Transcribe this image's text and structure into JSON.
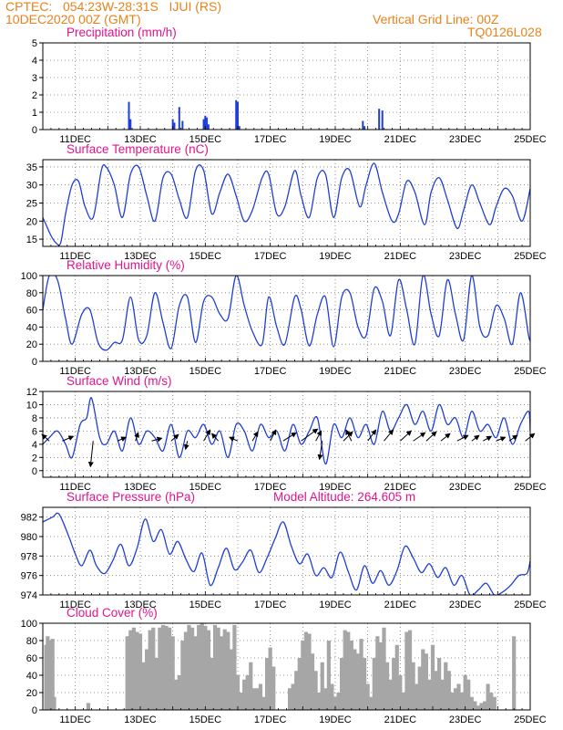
{
  "header": {
    "line1": "CPTEC:   054:23W-28:31S   IJUI (RS)",
    "line2": "10DEC2020 00Z (GMT)",
    "grid_note": "Vertical Grid Line: 00Z",
    "code": "TQ0126L028"
  },
  "colors": {
    "header": "#e8821a",
    "title": "#e0148c",
    "series": "#1f3fd6",
    "cloud": "#a6a6a6",
    "arrow": "#000000"
  },
  "chart_data": [
    {
      "type": "bar",
      "title": "Precipitation (mm/h)",
      "ylim": [
        0,
        5
      ],
      "yticks": [
        0,
        1,
        2,
        3,
        4,
        5
      ],
      "xlim_days": [
        10,
        25
      ],
      "xticks": [
        "11DEC",
        "13DEC",
        "15DEC",
        "17DEC",
        "19DEC",
        "21DEC",
        "23DEC",
        "25DEC"
      ],
      "x": [
        12.65,
        12.7,
        14.0,
        14.05,
        14.2,
        14.3,
        14.95,
        15.0,
        15.05,
        15.1,
        15.95,
        16.0,
        16.05,
        19.85,
        19.9,
        20.35,
        20.45
      ],
      "values": [
        1.6,
        0.6,
        0.6,
        0.4,
        1.3,
        0.5,
        0.6,
        0.8,
        0.7,
        0.3,
        1.7,
        1.6,
        0.2,
        0.5,
        0.2,
        1.2,
        1.1
      ]
    },
    {
      "type": "line",
      "title": "Surface Temperature (nC)",
      "ylim": [
        13,
        37
      ],
      "yticks": [
        15,
        20,
        25,
        30,
        35
      ],
      "xlim_days": [
        10,
        25
      ],
      "xticks": [
        "11DEC",
        "13DEC",
        "15DEC",
        "17DEC",
        "19DEC",
        "21DEC",
        "23DEC",
        "25DEC"
      ],
      "x": [
        10.0,
        10.1,
        10.25,
        10.4,
        10.55,
        10.7,
        10.9,
        11.1,
        11.3,
        11.55,
        11.8,
        11.95,
        12.2,
        12.45,
        12.7,
        12.95,
        13.2,
        13.45,
        13.7,
        13.95,
        14.2,
        14.45,
        14.7,
        14.95,
        15.2,
        15.45,
        15.7,
        15.95,
        16.2,
        16.45,
        16.75,
        16.95,
        17.2,
        17.45,
        17.75,
        17.95,
        18.2,
        18.45,
        18.7,
        18.95,
        19.2,
        19.45,
        19.75,
        19.95,
        20.2,
        20.45,
        20.75,
        20.95,
        21.2,
        21.45,
        21.75,
        21.95,
        22.2,
        22.45,
        22.75,
        22.95,
        23.2,
        23.45,
        23.75,
        23.95,
        24.2,
        24.45,
        24.75,
        25.0
      ],
      "values": [
        21,
        19,
        16,
        14,
        14,
        22,
        30,
        31,
        24,
        21,
        34,
        35,
        30,
        21,
        33,
        35,
        27,
        20,
        32,
        33,
        26,
        21,
        34,
        34,
        22,
        28,
        33,
        27,
        20,
        23,
        32,
        33,
        22,
        24,
        34,
        27,
        21,
        32,
        33,
        21,
        32,
        34,
        24,
        30,
        36,
        28,
        20,
        22,
        31,
        28,
        19,
        28,
        32,
        26,
        18,
        23,
        30,
        25,
        19,
        24,
        29,
        27,
        20,
        29
      ]
    },
    {
      "type": "line",
      "title": "Relative Humidity (%)",
      "ylim": [
        0,
        100
      ],
      "yticks": [
        0,
        20,
        40,
        60,
        80,
        100
      ],
      "xlim_days": [
        10,
        25
      ],
      "xticks": [
        "11DEC",
        "13DEC",
        "15DEC",
        "17DEC",
        "19DEC",
        "21DEC",
        "23DEC",
        "25DEC"
      ],
      "x": [
        10.0,
        10.2,
        10.45,
        10.7,
        10.9,
        11.2,
        11.45,
        11.7,
        11.95,
        12.2,
        12.45,
        12.7,
        12.95,
        13.2,
        13.45,
        13.7,
        13.95,
        14.2,
        14.45,
        14.7,
        14.95,
        15.2,
        15.45,
        15.7,
        15.95,
        16.2,
        16.45,
        16.75,
        16.95,
        17.2,
        17.45,
        17.75,
        17.95,
        18.2,
        18.45,
        18.7,
        18.95,
        19.2,
        19.45,
        19.7,
        19.95,
        20.2,
        20.45,
        20.7,
        20.95,
        21.2,
        21.45,
        21.7,
        21.95,
        22.2,
        22.45,
        22.7,
        22.95,
        23.2,
        23.45,
        23.7,
        23.95,
        24.2,
        24.45,
        24.7,
        24.95,
        25.0
      ],
      "values": [
        60,
        100,
        95,
        50,
        20,
        55,
        60,
        22,
        13,
        22,
        25,
        75,
        25,
        30,
        80,
        45,
        15,
        65,
        75,
        22,
        70,
        75,
        55,
        50,
        100,
        65,
        35,
        20,
        75,
        40,
        20,
        75,
        60,
        18,
        55,
        75,
        17,
        75,
        80,
        40,
        30,
        85,
        70,
        30,
        95,
        60,
        20,
        100,
        55,
        30,
        95,
        55,
        25,
        100,
        40,
        30,
        65,
        50,
        20,
        80,
        30,
        25
      ]
    },
    {
      "type": "line",
      "title": "Surface Wind (m/s)",
      "ylim": [
        -1,
        12
      ],
      "yticks": [
        0,
        2,
        4,
        6,
        8,
        10,
        12
      ],
      "xlim_days": [
        10,
        25
      ],
      "xticks": [
        "11DEC",
        "13DEC",
        "15DEC",
        "17DEC",
        "19DEC",
        "21DEC",
        "23DEC",
        "25DEC"
      ],
      "x": [
        10.0,
        10.2,
        10.45,
        10.7,
        10.9,
        11.15,
        11.35,
        11.5,
        11.75,
        11.95,
        12.2,
        12.45,
        12.7,
        12.95,
        13.2,
        13.45,
        13.7,
        13.95,
        14.2,
        14.45,
        14.7,
        14.95,
        15.2,
        15.45,
        15.7,
        15.95,
        16.2,
        16.45,
        16.7,
        16.95,
        17.2,
        17.45,
        17.7,
        17.95,
        18.2,
        18.45,
        18.7,
        18.95,
        19.2,
        19.45,
        19.7,
        19.95,
        20.2,
        20.45,
        20.7,
        20.95,
        21.2,
        21.45,
        21.7,
        21.95,
        22.2,
        22.45,
        22.7,
        22.95,
        23.2,
        23.45,
        23.7,
        23.95,
        24.2,
        24.45,
        24.7,
        24.95,
        25.0
      ],
      "values": [
        4,
        5,
        6,
        4,
        2,
        7,
        8,
        11,
        5,
        4,
        6,
        3,
        8,
        4,
        6,
        5,
        3,
        7,
        2,
        6,
        5,
        7,
        4,
        6,
        2,
        7,
        6,
        3,
        7,
        5,
        6,
        3,
        7,
        4,
        6,
        8,
        1,
        7,
        5,
        8,
        5,
        7,
        4,
        9,
        6,
        8,
        10,
        7,
        9,
        6,
        10,
        7,
        8,
        5,
        9,
        6,
        7,
        5,
        8,
        4,
        7,
        9,
        6
      ],
      "arrows": [
        {
          "day": 10.2,
          "dx": -8,
          "dy": 7
        },
        {
          "day": 10.6,
          "dx": 12,
          "dy": 5
        },
        {
          "day": 11.55,
          "dx": -3,
          "dy": -28
        },
        {
          "day": 12.3,
          "dx": 9,
          "dy": 4
        },
        {
          "day": 12.85,
          "dx": 3,
          "dy": 9
        },
        {
          "day": 13.35,
          "dx": 11,
          "dy": 3
        },
        {
          "day": 13.95,
          "dx": 8,
          "dy": 7
        },
        {
          "day": 14.45,
          "dx": -2,
          "dy": -9
        },
        {
          "day": 14.95,
          "dx": 7,
          "dy": 12
        },
        {
          "day": 15.4,
          "dx": -7,
          "dy": 8
        },
        {
          "day": 16.0,
          "dx": -9,
          "dy": 4
        },
        {
          "day": 16.45,
          "dx": 6,
          "dy": 10
        },
        {
          "day": 17.0,
          "dx": 6,
          "dy": 12
        },
        {
          "day": 17.4,
          "dx": 14,
          "dy": 9
        },
        {
          "day": 17.95,
          "dx": 18,
          "dy": 13
        },
        {
          "day": 18.4,
          "dx": 6,
          "dy": 11
        },
        {
          "day": 18.6,
          "dx": -3,
          "dy": -20
        },
        {
          "day": 19.25,
          "dx": 10,
          "dy": 10
        },
        {
          "day": 19.5,
          "dx": -6,
          "dy": 12
        },
        {
          "day": 20.0,
          "dx": 9,
          "dy": 12
        },
        {
          "day": 20.5,
          "dx": 10,
          "dy": 12
        },
        {
          "day": 21.0,
          "dx": 12,
          "dy": 11
        },
        {
          "day": 21.4,
          "dx": 13,
          "dy": 9
        },
        {
          "day": 21.8,
          "dx": 11,
          "dy": 10
        },
        {
          "day": 22.25,
          "dx": 10,
          "dy": 8
        },
        {
          "day": 22.75,
          "dx": 12,
          "dy": 6
        },
        {
          "day": 23.2,
          "dx": 8,
          "dy": 6
        },
        {
          "day": 23.55,
          "dx": 9,
          "dy": 5
        },
        {
          "day": 23.95,
          "dx": 10,
          "dy": 4
        },
        {
          "day": 24.35,
          "dx": 9,
          "dy": 6
        },
        {
          "day": 24.85,
          "dx": 10,
          "dy": 8
        }
      ]
    },
    {
      "type": "line",
      "title": "Surface Pressure (hPa)",
      "subtitle": "Model Altitude: 264.605  m",
      "ylim": [
        974,
        983
      ],
      "yticks": [
        974,
        976,
        978,
        980,
        982
      ],
      "xlim_days": [
        10,
        25
      ],
      "xticks": [
        "11DEC",
        "13DEC",
        "15DEC",
        "17DEC",
        "19DEC",
        "21DEC",
        "23DEC",
        "25DEC"
      ],
      "x": [
        10.0,
        10.3,
        10.5,
        10.8,
        11.0,
        11.2,
        11.45,
        11.65,
        11.9,
        12.15,
        12.4,
        12.65,
        12.9,
        13.15,
        13.4,
        13.65,
        13.9,
        14.15,
        14.4,
        14.65,
        14.9,
        15.15,
        15.4,
        15.65,
        15.9,
        16.15,
        16.4,
        16.65,
        16.9,
        17.15,
        17.4,
        17.65,
        17.9,
        18.15,
        18.4,
        18.65,
        18.9,
        19.15,
        19.4,
        19.65,
        19.9,
        20.15,
        20.4,
        20.65,
        20.9,
        21.15,
        21.4,
        21.65,
        21.9,
        22.15,
        22.4,
        22.65,
        22.9,
        23.15,
        23.4,
        23.65,
        23.9,
        24.15,
        24.4,
        24.65,
        24.9,
        25.0
      ],
      "values": [
        981.5,
        982.0,
        982.3,
        980.0,
        978.2,
        977.0,
        978.6,
        977.0,
        976.2,
        977.5,
        979.2,
        977.0,
        978.8,
        981.8,
        979.5,
        980.7,
        978.2,
        979.5,
        977.7,
        976.4,
        978.3,
        975.0,
        976.8,
        978.8,
        976.6,
        977.4,
        978.6,
        976.3,
        977.8,
        979.8,
        981.5,
        979.0,
        977.2,
        978.2,
        976.0,
        976.8,
        975.8,
        978.4,
        976.4,
        974.5,
        977.0,
        975.2,
        976.5,
        975.0,
        976.5,
        979.0,
        977.8,
        976.3,
        977.2,
        975.8,
        976.8,
        975.0,
        976.0,
        974.0,
        974.5,
        975.2,
        974.0,
        974.3,
        975.0,
        976.0,
        976.2,
        977.5
      ]
    },
    {
      "type": "bar",
      "title": "Cloud Cover (%)",
      "ylim": [
        0,
        100
      ],
      "yticks": [
        0,
        20,
        40,
        60,
        80,
        100
      ],
      "xlim_days": [
        10,
        25
      ],
      "xticks": [
        "11DEC",
        "13DEC",
        "15DEC",
        "17DEC",
        "19DEC",
        "21DEC",
        "23DEC",
        "25DEC"
      ],
      "x": [
        10.1,
        10.15,
        10.2,
        10.25,
        10.3,
        10.35,
        11.4,
        12.6,
        12.7,
        12.8,
        12.9,
        13.0,
        13.1,
        13.2,
        13.3,
        13.4,
        13.5,
        13.6,
        13.7,
        13.8,
        13.9,
        14.0,
        14.1,
        14.2,
        14.3,
        14.4,
        14.5,
        14.6,
        14.7,
        14.8,
        14.9,
        15.0,
        15.1,
        15.2,
        15.3,
        15.4,
        15.5,
        15.6,
        15.7,
        15.8,
        15.9,
        16.0,
        16.1,
        16.2,
        16.3,
        16.4,
        16.5,
        16.6,
        16.7,
        16.8,
        16.9,
        17.0,
        17.1,
        17.6,
        17.7,
        17.8,
        17.9,
        18.0,
        18.1,
        18.2,
        18.3,
        18.4,
        18.5,
        18.6,
        18.7,
        18.8,
        18.9,
        19.0,
        19.1,
        19.2,
        19.3,
        19.4,
        19.5,
        19.6,
        19.7,
        19.8,
        19.9,
        20.0,
        20.1,
        20.2,
        20.3,
        20.4,
        20.5,
        20.6,
        20.7,
        20.8,
        20.9,
        21.0,
        21.1,
        21.2,
        21.3,
        21.4,
        21.5,
        21.6,
        21.7,
        21.8,
        21.9,
        22.0,
        22.1,
        22.2,
        22.3,
        22.4,
        22.5,
        22.6,
        22.7,
        22.8,
        22.9,
        23.0,
        23.1,
        23.2,
        23.3,
        23.4,
        23.5,
        23.6,
        23.7,
        23.8,
        23.9,
        24.5
      ],
      "values": [
        75,
        85,
        80,
        78,
        82,
        15,
        8,
        85,
        92,
        95,
        90,
        88,
        55,
        70,
        92,
        95,
        60,
        95,
        98,
        97,
        95,
        85,
        35,
        40,
        80,
        90,
        98,
        95,
        85,
        98,
        100,
        97,
        92,
        60,
        98,
        95,
        85,
        93,
        90,
        70,
        98,
        40,
        20,
        35,
        40,
        55,
        25,
        25,
        30,
        15,
        60,
        72,
        50,
        25,
        30,
        45,
        60,
        80,
        90,
        88,
        65,
        45,
        20,
        55,
        25,
        80,
        30,
        15,
        20,
        60,
        92,
        90,
        80,
        70,
        65,
        82,
        60,
        30,
        15,
        60,
        85,
        78,
        95,
        55,
        35,
        60,
        75,
        40,
        20,
        90,
        92,
        55,
        30,
        50,
        70,
        65,
        35,
        75,
        45,
        60,
        35,
        55,
        45,
        20,
        25,
        30,
        20,
        40,
        35,
        15,
        10,
        5,
        8,
        10,
        30,
        20,
        15,
        85
      ]
    }
  ]
}
